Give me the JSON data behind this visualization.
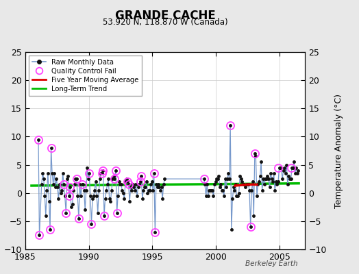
{
  "title": "GRANDE CACHE",
  "subtitle": "53.920 N, 118.870 W (Canada)",
  "ylabel": "Temperature Anomaly (°C)",
  "watermark": "Berkeley Earth",
  "xlim": [
    1985,
    2007
  ],
  "ylim": [
    -10,
    25
  ],
  "yticks": [
    -10,
    -5,
    0,
    5,
    10,
    15,
    20,
    25
  ],
  "xticks": [
    1985,
    1990,
    1995,
    2000,
    2005
  ],
  "bg_color": "#e8e8e8",
  "plot_bg_color": "#ffffff",
  "raw_line_color": "#7799cc",
  "raw_dot_color": "#111111",
  "qc_fail_color": "#ff44ff",
  "five_year_color": "#dd0000",
  "trend_color": "#00bb00",
  "raw_x": [
    1986.04,
    1986.12,
    1986.29,
    1986.38,
    1986.46,
    1986.54,
    1986.62,
    1986.71,
    1986.79,
    1986.88,
    1986.96,
    1987.04,
    1987.12,
    1987.21,
    1987.29,
    1987.38,
    1987.46,
    1987.54,
    1987.62,
    1987.71,
    1987.79,
    1987.88,
    1987.96,
    1988.04,
    1988.12,
    1988.21,
    1988.29,
    1988.38,
    1988.46,
    1988.54,
    1988.62,
    1988.71,
    1988.79,
    1988.88,
    1988.96,
    1989.04,
    1989.12,
    1989.21,
    1989.29,
    1989.38,
    1989.46,
    1989.54,
    1989.62,
    1989.71,
    1989.79,
    1989.88,
    1989.96,
    1990.04,
    1990.12,
    1990.21,
    1990.29,
    1990.38,
    1990.46,
    1990.54,
    1990.62,
    1990.71,
    1990.79,
    1990.88,
    1990.96,
    1991.04,
    1991.12,
    1991.21,
    1991.29,
    1991.38,
    1991.46,
    1991.54,
    1991.62,
    1991.71,
    1991.79,
    1991.88,
    1991.96,
    1992.04,
    1992.12,
    1992.21,
    1992.29,
    1992.38,
    1992.46,
    1992.54,
    1992.62,
    1992.71,
    1992.79,
    1992.88,
    1992.96,
    1993.04,
    1993.12,
    1993.21,
    1993.29,
    1993.38,
    1993.46,
    1993.54,
    1993.62,
    1993.71,
    1993.79,
    1993.88,
    1993.96,
    1994.04,
    1994.12,
    1994.21,
    1994.29,
    1994.38,
    1994.46,
    1994.54,
    1994.62,
    1994.71,
    1994.79,
    1994.88,
    1994.96,
    1995.04,
    1995.12,
    1995.21,
    1995.29,
    1995.38,
    1995.46,
    1995.54,
    1995.62,
    1995.71,
    1995.79,
    1995.88,
    1995.96,
    1999.04,
    1999.12,
    1999.21,
    1999.29,
    1999.38,
    1999.46,
    1999.54,
    1999.62,
    1999.71,
    1999.79,
    1999.88,
    1999.96,
    2000.04,
    2000.12,
    2000.21,
    2000.29,
    2000.38,
    2000.46,
    2000.54,
    2000.62,
    2000.71,
    2000.79,
    2000.88,
    2000.96,
    2001.04,
    2001.12,
    2001.21,
    2001.29,
    2001.38,
    2001.46,
    2001.54,
    2001.62,
    2001.71,
    2001.79,
    2001.88,
    2001.96,
    2002.04,
    2002.12,
    2002.21,
    2002.29,
    2002.38,
    2002.46,
    2002.54,
    2002.62,
    2002.71,
    2002.79,
    2002.88,
    2002.96,
    2003.04,
    2003.12,
    2003.21,
    2003.29,
    2003.38,
    2003.46,
    2003.54,
    2003.62,
    2003.71,
    2003.79,
    2003.88,
    2003.96,
    2004.04,
    2004.12,
    2004.21,
    2004.29,
    2004.38,
    2004.46,
    2004.54,
    2004.62,
    2004.71,
    2004.79,
    2004.88,
    2004.96,
    2005.04,
    2005.12,
    2005.21,
    2005.29,
    2005.38,
    2005.46,
    2005.54,
    2005.62,
    2005.71,
    2005.79,
    2005.88,
    2005.96,
    2006.04,
    2006.12,
    2006.21,
    2006.29,
    2006.38,
    2006.46
  ],
  "raw_y": [
    9.5,
    -7.5,
    1.5,
    3.5,
    2.5,
    -0.5,
    -4.0,
    0.5,
    3.5,
    -1.5,
    -6.5,
    8.0,
    3.5,
    1.5,
    3.5,
    1.0,
    2.5,
    1.0,
    -1.0,
    1.5,
    0.0,
    0.5,
    3.5,
    1.5,
    -0.5,
    -3.5,
    2.5,
    3.0,
    -0.5,
    1.0,
    -2.5,
    -2.0,
    0.5,
    1.5,
    2.5,
    2.5,
    -0.5,
    -4.5,
    1.5,
    -0.5,
    1.5,
    1.5,
    0.5,
    -3.0,
    0.5,
    4.5,
    2.5,
    3.5,
    -0.5,
    -5.5,
    -1.0,
    -0.5,
    0.5,
    2.0,
    -0.5,
    -3.5,
    0.5,
    2.5,
    3.5,
    3.5,
    4.0,
    -4.0,
    -1.0,
    0.5,
    1.5,
    2.5,
    -1.0,
    -1.5,
    0.5,
    2.5,
    3.0,
    2.5,
    4.0,
    -3.5,
    -0.5,
    2.0,
    1.5,
    1.5,
    0.5,
    0.0,
    -1.0,
    2.0,
    2.5,
    2.0,
    1.5,
    -1.5,
    1.0,
    0.5,
    1.5,
    1.0,
    0.5,
    1.5,
    -0.5,
    1.0,
    1.5,
    2.0,
    3.0,
    -1.0,
    0.5,
    1.0,
    1.0,
    2.0,
    0.0,
    0.5,
    0.5,
    1.5,
    2.0,
    0.5,
    3.5,
    -7.0,
    1.5,
    1.0,
    1.5,
    1.0,
    0.5,
    1.0,
    -1.0,
    1.5,
    2.5,
    2.5,
    1.5,
    -0.5,
    1.5,
    -0.5,
    0.5,
    0.5,
    0.5,
    0.5,
    -0.5,
    1.5,
    2.0,
    2.5,
    2.5,
    3.0,
    1.0,
    1.5,
    0.5,
    0.5,
    -0.5,
    2.5,
    1.0,
    2.5,
    3.5,
    2.5,
    12.0,
    -6.5,
    -1.0,
    1.0,
    0.5,
    1.5,
    -0.5,
    -0.5,
    0.0,
    3.0,
    2.5,
    2.0,
    1.5,
    1.5,
    1.0,
    1.5,
    1.5,
    1.5,
    0.5,
    -6.0,
    0.5,
    2.0,
    -4.0,
    7.0,
    6.5,
    -0.5,
    1.5,
    2.0,
    3.0,
    5.5,
    0.5,
    2.5,
    1.5,
    2.5,
    2.5,
    3.0,
    2.5,
    1.0,
    3.5,
    2.5,
    2.0,
    3.5,
    0.5,
    2.0,
    1.5,
    2.0,
    4.5,
    4.5,
    4.5,
    2.5,
    4.0,
    4.5,
    3.5,
    5.0,
    1.5,
    3.0,
    2.5,
    2.5,
    4.5,
    4.5,
    5.5,
    3.5,
    4.5,
    3.5,
    4.0
  ],
  "qc_fail_x": [
    1986.04,
    1986.12,
    1986.96,
    1987.04,
    1988.04,
    1988.21,
    1988.46,
    1988.54,
    1989.04,
    1989.21,
    1989.46,
    1990.04,
    1990.21,
    1991.04,
    1991.12,
    1991.21,
    1992.04,
    1992.12,
    1992.21,
    1993.04,
    1993.12,
    1994.04,
    1994.12,
    1995.12,
    1995.21,
    1999.04,
    2001.12,
    2002.71,
    2003.04,
    2004.88,
    2005.88
  ],
  "qc_fail_y": [
    9.5,
    -7.5,
    -6.5,
    8.0,
    1.5,
    -3.5,
    -0.5,
    1.0,
    2.5,
    -4.5,
    1.5,
    3.5,
    -5.5,
    3.5,
    4.0,
    -4.0,
    2.5,
    4.0,
    -3.5,
    2.0,
    1.5,
    2.0,
    3.0,
    3.5,
    -7.0,
    2.5,
    12.0,
    -6.0,
    7.0,
    4.5,
    4.5
  ],
  "five_year_ma_x": [
    2001.5,
    2002.0,
    2002.5,
    2003.0,
    2003.2
  ],
  "five_year_ma_y": [
    1.3,
    1.4,
    1.5,
    1.5,
    1.5
  ],
  "trend_x": [
    1985.5,
    2006.5
  ],
  "trend_y": [
    1.3,
    1.7
  ]
}
